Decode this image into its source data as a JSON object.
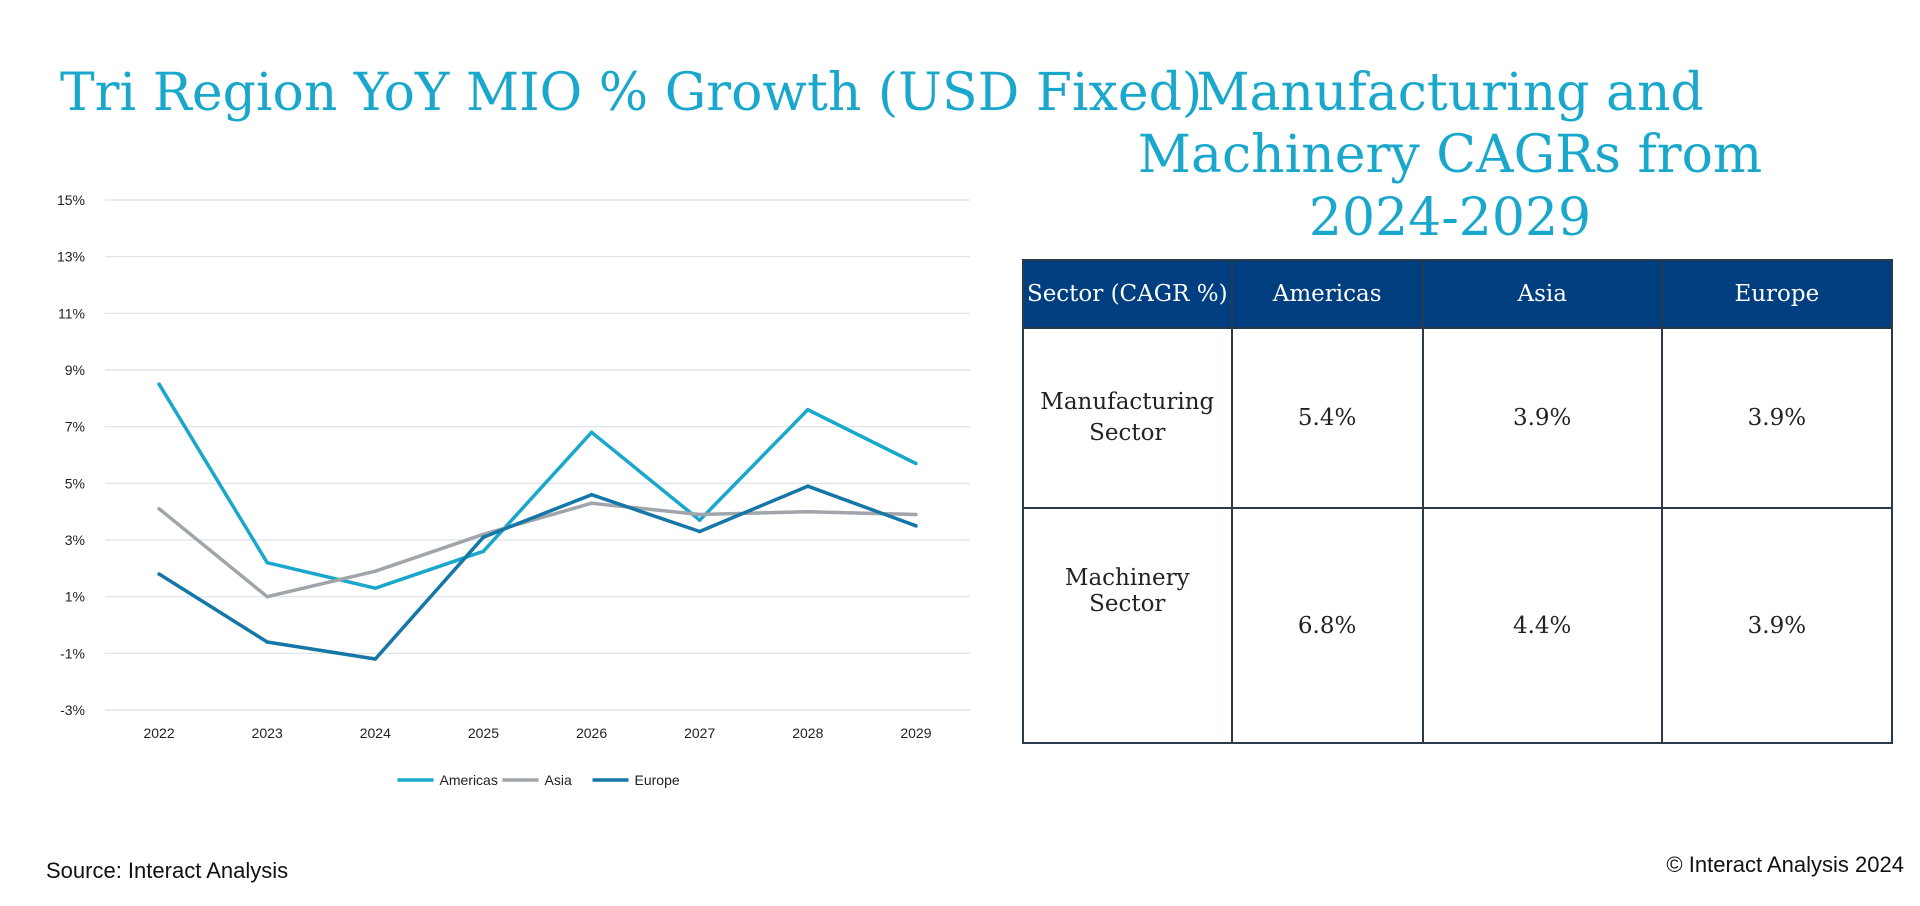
{
  "left_title": "Tri Region YoY MIO % Growth (USD Fixed)",
  "right_title": "Manufacturing and Machinery CAGRs from 2024-2029",
  "chart_data": {
    "type": "line",
    "title": "Tri Region YoY MIO % Growth (USD Fixed)",
    "x": [
      "2022",
      "2023",
      "2024",
      "2025",
      "2026",
      "2027",
      "2028",
      "2029"
    ],
    "y_ticks": [
      15,
      13,
      11,
      9,
      7,
      5,
      3,
      1,
      -1,
      -3
    ],
    "y_tick_labels": [
      "15%",
      "13%",
      "11%",
      "9%",
      "7%",
      "5%",
      "3%",
      "1%",
      "-1%",
      "-3%"
    ],
    "ylim": [
      -3,
      15
    ],
    "grid": true,
    "legend_position": "bottom",
    "series": [
      {
        "name": "Americas",
        "color": "#1aa7cc",
        "values": [
          8.5,
          2.2,
          1.3,
          2.6,
          6.8,
          3.7,
          7.6,
          5.7
        ]
      },
      {
        "name": "Asia",
        "color": "#a0a5aa",
        "values": [
          4.1,
          1.0,
          1.9,
          3.2,
          4.3,
          3.9,
          4.0,
          3.9
        ]
      },
      {
        "name": "Europe",
        "color": "#1576a8",
        "values": [
          1.8,
          -0.6,
          -1.2,
          3.1,
          4.6,
          3.3,
          4.9,
          3.5
        ]
      }
    ]
  },
  "table": {
    "headers": [
      "Sector (CAGR %)",
      "Americas",
      "Asia",
      "Europe"
    ],
    "rows": [
      {
        "sector": "Manufacturing Sector",
        "americas": "5.4%",
        "asia": "3.9%",
        "europe": "3.9%"
      },
      {
        "sector": "Machinery Sector",
        "americas": "6.8%",
        "asia": "4.4%",
        "europe": "3.9%"
      }
    ]
  },
  "footer": {
    "source": "Source: Interact Analysis",
    "copyright": "© Interact Analysis 2024"
  }
}
